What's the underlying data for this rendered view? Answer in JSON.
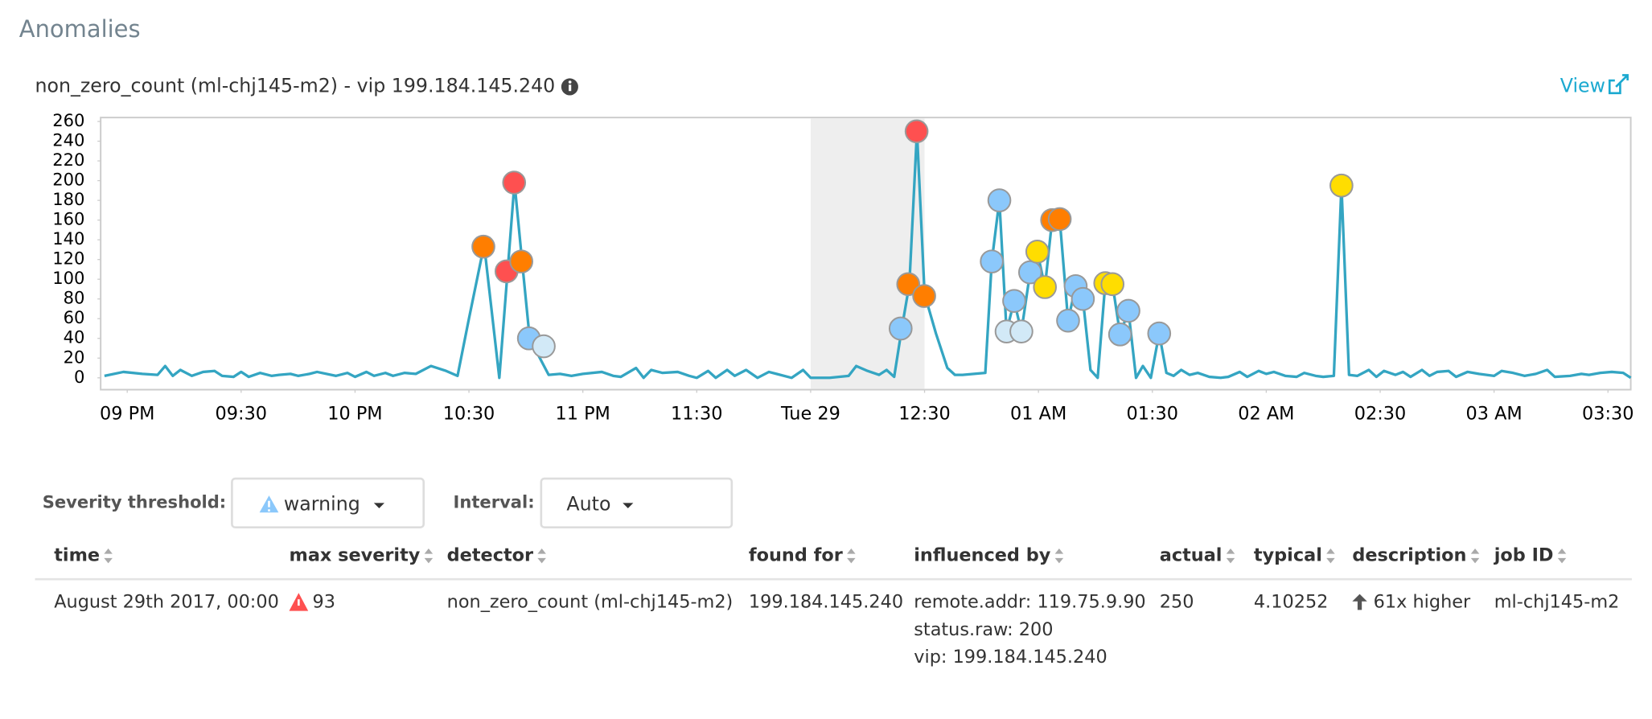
{
  "header": {
    "title": "Anomalies"
  },
  "chart_data": {
    "type": "line",
    "title": "non_zero_count (ml-chj145-m2) - vip 199.184.145.240",
    "link": "View",
    "color": "#34a5c2",
    "x": [
      -6,
      -1,
      4,
      8,
      10,
      12,
      14,
      17,
      20,
      23,
      25,
      28,
      30,
      32,
      35,
      38,
      40,
      43,
      45,
      48,
      50,
      55,
      58,
      60,
      63,
      65,
      68,
      70,
      73,
      76,
      80,
      84,
      87,
      90,
      94,
      98,
      102,
      104,
      106,
      108,
      111,
      114,
      117,
      120,
      125,
      128,
      130,
      134,
      136,
      138,
      141,
      145,
      148,
      150,
      153,
      155,
      158,
      160,
      163,
      166,
      169,
      171,
      175,
      178,
      180,
      185,
      190,
      192,
      195,
      198,
      200,
      202,
      204,
      206,
      208,
      210,
      213,
      216,
      218,
      220,
      223,
      226,
      227.7,
      229.7,
      231.6,
      233.6,
      235.5,
      237.8,
      239.7,
      241.7,
      243.6,
      245.6,
      247.8,
      249.8,
      251.7,
      253.7,
      255.6,
      257.6,
      259.5,
      261.5,
      263.7,
      265.7,
      267.5,
      269.6,
      271.8,
      273.7,
      275.6,
      277.6,
      279.8,
      282,
      285,
      288,
      290,
      293,
      295,
      298,
      300,
      302,
      305,
      308,
      310,
      313,
      315,
      317.8,
      319.8,
      321.8,
      324,
      327,
      329,
      331,
      334,
      336,
      338,
      341,
      343,
      345,
      348,
      350,
      353,
      356,
      360,
      362,
      365,
      368,
      371,
      374,
      376,
      380,
      383,
      385,
      388,
      391,
      394,
      396
    ],
    "values": [
      2,
      6,
      4,
      3,
      12,
      2,
      8,
      2,
      6,
      7,
      2,
      1,
      6,
      1,
      5,
      2,
      3,
      4,
      2,
      4,
      6,
      2,
      5,
      1,
      6,
      2,
      5,
      2,
      5,
      4,
      12,
      7,
      2,
      60,
      135,
      0,
      198,
      118,
      40,
      25,
      3,
      4,
      2,
      4,
      6,
      2,
      1,
      10,
      0,
      8,
      5,
      6,
      2,
      0,
      7,
      0,
      8,
      2,
      8,
      0,
      6,
      4,
      0,
      8,
      0,
      0,
      2,
      12,
      7,
      3,
      8,
      1,
      50,
      95,
      250,
      85,
      45,
      10,
      3,
      3,
      4,
      5,
      118,
      180,
      47,
      78,
      47,
      107,
      128,
      92,
      160,
      161,
      58,
      93,
      80,
      8,
      0,
      96,
      95,
      44,
      68,
      0,
      12,
      0,
      45,
      5,
      2,
      8,
      3,
      5,
      1,
      0,
      1,
      6,
      1,
      7,
      4,
      6,
      2,
      1,
      5,
      2,
      1,
      2,
      195,
      3,
      2,
      8,
      1,
      7,
      3,
      6,
      1,
      8,
      2,
      6,
      7,
      1,
      6,
      4,
      2,
      7,
      5,
      2,
      4,
      8,
      1,
      2,
      4,
      3,
      5,
      6,
      5,
      0
    ],
    "anomalies": {
      "x": [
        93.8,
        99.9,
        101.9,
        103.8,
        105.8,
        109.7,
        203.7,
        205.7,
        207.9,
        209.9,
        227.7,
        229.7,
        231.6,
        233.6,
        235.5,
        237.8,
        239.7,
        241.7,
        243.6,
        245.6,
        247.8,
        249.8,
        251.7,
        257.6,
        259.5,
        261.5,
        263.7,
        271.8,
        319.8
      ],
      "values": [
        133,
        108,
        198,
        118,
        40,
        32,
        50,
        95,
        250,
        83,
        118,
        180,
        47,
        78,
        47,
        107,
        128,
        92,
        160,
        161,
        58,
        93,
        80,
        96,
        95,
        44,
        68,
        45,
        195
      ],
      "colors": [
        "#ff7e00",
        "#fe5050",
        "#fe5050",
        "#ff7e00",
        "#8bc8fb",
        "#d2e9f7",
        "#8bc8fb",
        "#ff7e00",
        "#fe5050",
        "#ff7e00",
        "#8bc8fb",
        "#8bc8fb",
        "#d2e9f7",
        "#8bc8fb",
        "#d2e9f7",
        "#8bc8fb",
        "#ffdd00",
        "#ffdd00",
        "#ff7e00",
        "#ff7e00",
        "#8bc8fb",
        "#8bc8fb",
        "#8bc8fb",
        "#ffdd00",
        "#ffdd00",
        "#8bc8fb",
        "#8bc8fb",
        "#8bc8fb",
        "#ffdd00"
      ]
    },
    "selected_range": [
      180,
      210
    ],
    "xlim": [
      -7,
      396
    ],
    "xticks": [
      {
        "value": 0,
        "label": "09 PM"
      },
      {
        "value": 30,
        "label": "09:30"
      },
      {
        "value": 60,
        "label": "10 PM"
      },
      {
        "value": 90,
        "label": "10:30"
      },
      {
        "value": 120,
        "label": "11 PM"
      },
      {
        "value": 150,
        "label": "11:30"
      },
      {
        "value": 180,
        "label": "Tue 29"
      },
      {
        "value": 210,
        "label": "12:30"
      },
      {
        "value": 240,
        "label": "01 AM"
      },
      {
        "value": 270,
        "label": "01:30"
      },
      {
        "value": 300,
        "label": "02 AM"
      },
      {
        "value": 330,
        "label": "02:30"
      },
      {
        "value": 360,
        "label": "03 AM"
      },
      {
        "value": 390,
        "label": "03:30"
      }
    ],
    "ylim": [
      -12,
      264
    ],
    "yticks": [
      0,
      20,
      40,
      60,
      80,
      100,
      120,
      140,
      160,
      180,
      200,
      220,
      240,
      260
    ]
  },
  "controls": {
    "severity_label": "Severity threshold:",
    "severity": "warning",
    "interval_label": "Interval:",
    "interval": "Auto"
  },
  "table": {
    "columns": [
      "time",
      "max severity",
      "detector",
      "found for",
      "influenced by",
      "actual",
      "typical",
      "description",
      "job ID"
    ],
    "rows": [
      [
        "August 29th 2017, 00:00",
        93,
        "non_zero_count (ml-chj145-m2)",
        "199.184.145.240",
        [
          "remote.addr: 119.75.9.90",
          "status.raw: 200",
          "vip: 199.184.145.240"
        ],
        250,
        4.10252,
        "61x higher",
        "ml-chj145-m2"
      ]
    ]
  }
}
